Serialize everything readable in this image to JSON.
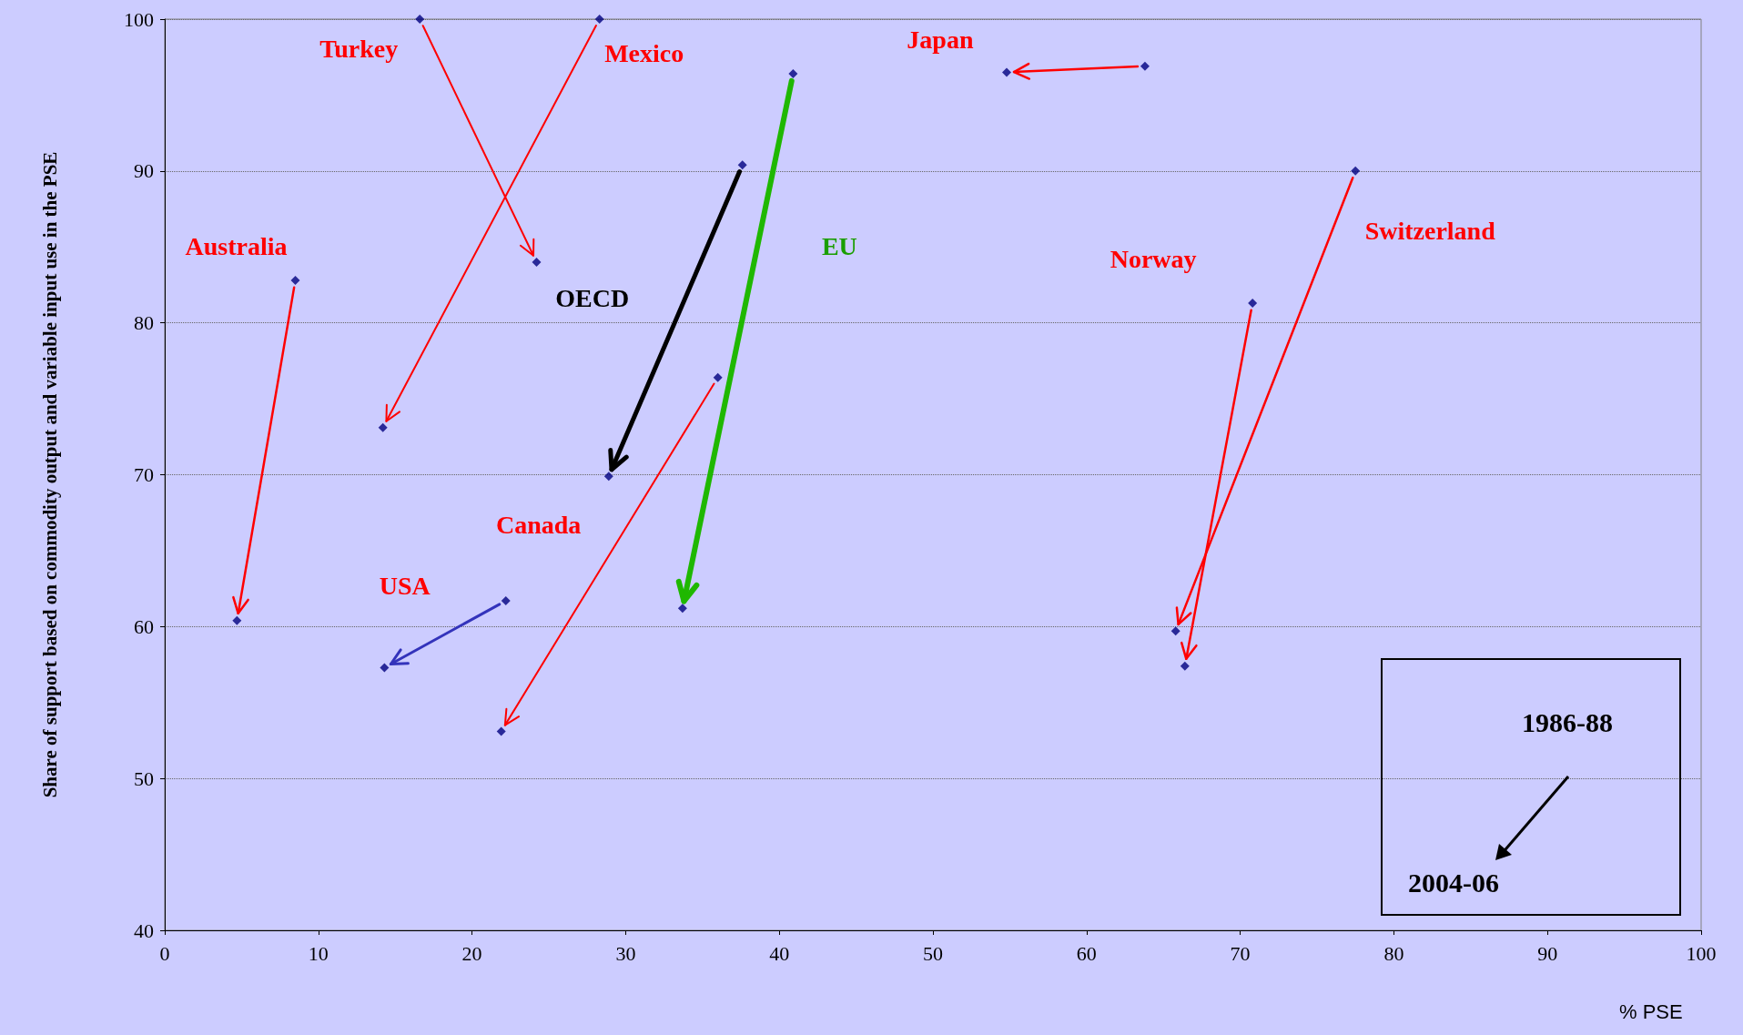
{
  "chart_data": {
    "type": "scatter",
    "xlabel": "% PSE",
    "ylabel": "Share of support based on commodity output and variable input use in the PSE",
    "xlim": [
      0,
      100
    ],
    "xticks": [
      0,
      10,
      20,
      30,
      40,
      50,
      60,
      70,
      80,
      90,
      100
    ],
    "ylim": [
      40,
      100
    ],
    "yticks": [
      40,
      50,
      60,
      70,
      80,
      90,
      100
    ],
    "grid": "y",
    "marker": "diamond",
    "annotations": [
      {
        "text": "Australia",
        "x": 8.5,
        "y": 82.8
      },
      {
        "text": "Turkey",
        "x": 16.6,
        "y": 100
      },
      {
        "text": "Mexico",
        "x": 28.3,
        "y": 100
      },
      "Japan",
      "EU",
      "OECD",
      "Canada",
      {
        "text": "USA",
        "x": 22.2,
        "y": 61.7
      },
      {
        "text": "Norway",
        "x": 70.8,
        "y": 81.3
      },
      {
        "text": "Switzerland",
        "x": 77.5,
        "y": 90.0
      },
      "1986-88",
      "2004-06"
    ],
    "series": [
      {
        "color": "#00007f",
        "x": [
          8.5,
          4.7,
          16.6,
          24.2,
          28.3,
          14.2,
          63.8,
          54.8,
          40.9,
          33.7,
          37.6,
          28.9,
          36.0,
          21.9,
          22.2,
          14.3,
          70.8,
          66.4,
          77.5,
          65.8
        ],
        "values": [
          82.8,
          60.4,
          100,
          84.0,
          100,
          73.1,
          96.9,
          96.5,
          96.4,
          61.2,
          90.4,
          69.9,
          76.4,
          53.1,
          61.7,
          57.3,
          81.3,
          57.4,
          90.0,
          59.7
        ]
      }
    ]
  }
}
